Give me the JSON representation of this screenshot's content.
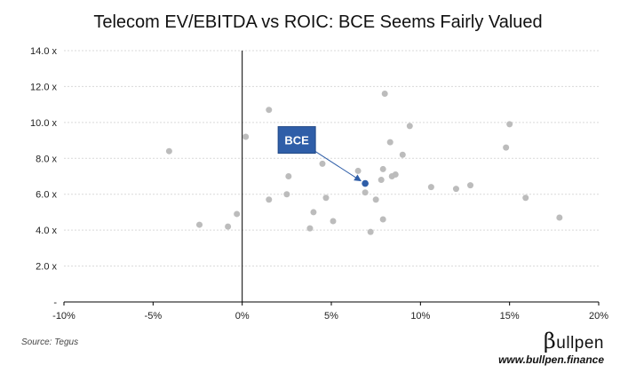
{
  "title": "Telecom EV/EBITDA vs ROIC: BCE Seems Fairly Valued",
  "source": "Source: Tegus",
  "brand": {
    "symbol": "β",
    "name": "ullpen",
    "website": "www.bullpen.finance"
  },
  "colors": {
    "peer": "#bcbcbc",
    "highlight": "#2f5ea8",
    "grid": "#d9d9d9",
    "axis": "#000000"
  },
  "chart_data": {
    "type": "scatter",
    "title": "Telecom EV/EBITDA vs ROIC: BCE Seems Fairly Valued",
    "xlabel": "",
    "ylabel": "",
    "xlim": [
      -10,
      20
    ],
    "ylim": [
      0,
      14
    ],
    "x_ticks": [
      "-10%",
      "-5%",
      "0%",
      "5%",
      "10%",
      "15%",
      "20%"
    ],
    "y_ticks": [
      "-",
      "2.0 x",
      "4.0 x",
      "6.0 x",
      "8.0 x",
      "10.0 x",
      "12.0 x",
      "14.0 x"
    ],
    "grid": "horizontal dotted",
    "series": [
      {
        "points": [
          {
            "x": -4.1,
            "y": 8.4
          },
          {
            "x": -2.4,
            "y": 4.3
          },
          {
            "x": -0.8,
            "y": 4.2
          },
          {
            "x": -0.3,
            "y": 4.9
          },
          {
            "x": 0.2,
            "y": 9.2
          },
          {
            "x": 1.5,
            "y": 10.7
          },
          {
            "x": 1.5,
            "y": 5.7
          },
          {
            "x": 2.5,
            "y": 6.0
          },
          {
            "x": 2.6,
            "y": 7.0
          },
          {
            "x": 3.8,
            "y": 4.1
          },
          {
            "x": 4.0,
            "y": 5.0
          },
          {
            "x": 4.5,
            "y": 7.7
          },
          {
            "x": 4.7,
            "y": 5.8
          },
          {
            "x": 5.1,
            "y": 4.5
          },
          {
            "x": 6.5,
            "y": 7.3
          },
          {
            "x": 6.9,
            "y": 6.1
          },
          {
            "x": 7.2,
            "y": 3.9
          },
          {
            "x": 7.5,
            "y": 5.7
          },
          {
            "x": 7.8,
            "y": 6.8
          },
          {
            "x": 7.9,
            "y": 7.4
          },
          {
            "x": 7.9,
            "y": 4.6
          },
          {
            "x": 8.0,
            "y": 11.6
          },
          {
            "x": 8.3,
            "y": 8.9
          },
          {
            "x": 8.4,
            "y": 7.0
          },
          {
            "x": 8.6,
            "y": 7.1
          },
          {
            "x": 9.0,
            "y": 8.2
          },
          {
            "x": 9.4,
            "y": 9.8
          },
          {
            "x": 10.6,
            "y": 6.4
          },
          {
            "x": 12.0,
            "y": 6.3
          },
          {
            "x": 12.8,
            "y": 6.5
          },
          {
            "x": 14.8,
            "y": 8.6
          },
          {
            "x": 15.0,
            "y": 9.9
          },
          {
            "x": 15.9,
            "y": 5.8
          },
          {
            "x": 17.8,
            "y": 4.7
          }
        ]
      },
      {
        "name": "BCE",
        "points": [
          {
            "x": 6.9,
            "y": 6.6
          }
        ]
      }
    ],
    "annotations": [
      {
        "text": "BCE",
        "target": {
          "x": 6.9,
          "y": 6.6
        }
      }
    ]
  }
}
